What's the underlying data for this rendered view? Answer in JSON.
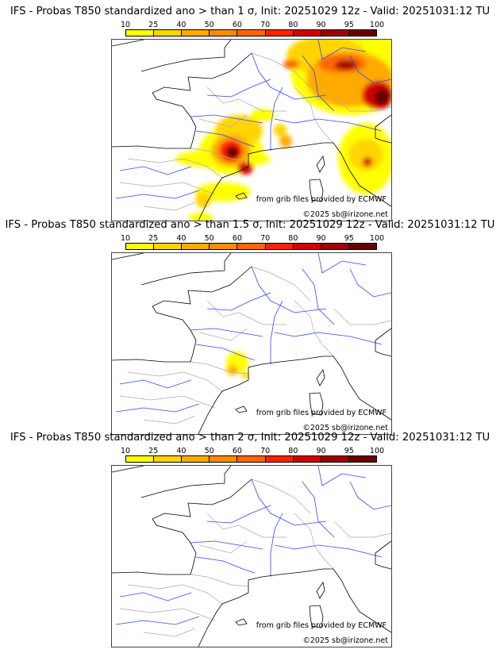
{
  "colorbar": {
    "ticks": [
      "10",
      "25",
      "40",
      "50",
      "60",
      "70",
      "80",
      "90",
      "95",
      "100"
    ],
    "colors": [
      "#ffff00",
      "#ffd500",
      "#ffaa00",
      "#ff8c00",
      "#ff6600",
      "#ff2200",
      "#d40000",
      "#a00000",
      "#680000"
    ]
  },
  "panels": [
    {
      "title": "IFS - Probas T850  standardized ano > than 1 σ, Init: 20251029 12z - Valid: 20251031:12 TU",
      "threshold_sigma": 1
    },
    {
      "title": "IFS - Probas T850  standardized ano > than 1.5 σ, Init: 20251029 12z - Valid: 20251031:12 TU",
      "threshold_sigma": 1.5
    },
    {
      "title": "IFS - Probas T850  standardized ano > than 2 σ, Init: 20251029 12z - Valid: 20251031:12 TU",
      "threshold_sigma": 2
    }
  ],
  "credits": {
    "source": "from grib files provided by ECMWF",
    "copyright": "©2025 sb@irizone.net"
  }
}
